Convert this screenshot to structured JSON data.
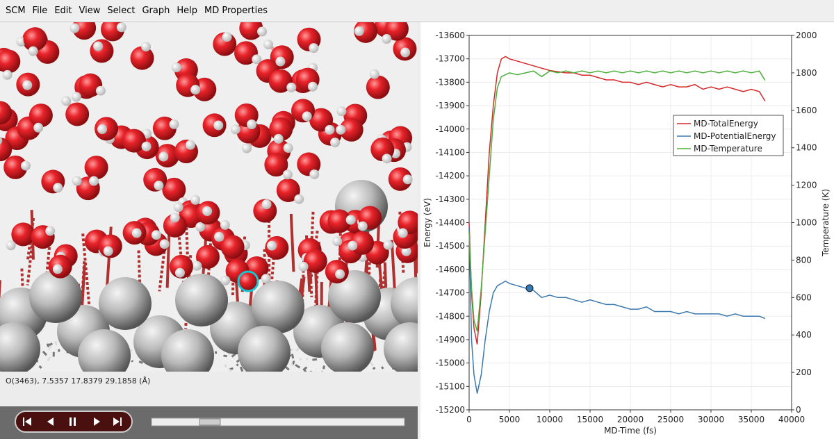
{
  "menu": [
    "SCM",
    "File",
    "Edit",
    "View",
    "Select",
    "Graph",
    "Help",
    "MD Properties"
  ],
  "status": "O(3463), 7.5357 17.8379 29.1858 (Å)",
  "chart_data": {
    "type": "line",
    "xlabel": "MD-Time (fs)",
    "ylabel": "Energy (eV)",
    "y2label": "Temperature (K)",
    "x": [
      0,
      300,
      600,
      1000,
      1500,
      2000,
      2500,
      3000,
      3500,
      4000,
      4500,
      5000,
      6000,
      7000,
      8000,
      9000,
      10000,
      11000,
      12000,
      13000,
      14000,
      15000,
      16000,
      17000,
      18000,
      19000,
      20000,
      21000,
      22000,
      23000,
      24000,
      25000,
      26000,
      27000,
      28000,
      29000,
      30000,
      31000,
      32000,
      33000,
      34000,
      35000,
      36000,
      36700
    ],
    "series": [
      {
        "name": "MD-TotalEnergy",
        "color": "#d62728",
        "values": [
          -14400,
          -14700,
          -14850,
          -14920,
          -14700,
          -14400,
          -14100,
          -13900,
          -13760,
          -13700,
          -13690,
          -13700,
          -13710,
          -13720,
          -13730,
          -13740,
          -13750,
          -13755,
          -13760,
          -13760,
          -13770,
          -13770,
          -13780,
          -13790,
          -13790,
          -13800,
          -13800,
          -13810,
          -13800,
          -13810,
          -13820,
          -13810,
          -13820,
          -13820,
          -13810,
          -13830,
          -13820,
          -13830,
          -13820,
          -13830,
          -13840,
          -13830,
          -13840,
          -13880
        ]
      },
      {
        "name": "MD-PotentialEnergy",
        "color": "#3a78b0",
        "values": [
          -14420,
          -14900,
          -15050,
          -15130,
          -15050,
          -14900,
          -14780,
          -14700,
          -14670,
          -14660,
          -14650,
          -14660,
          -14670,
          -14680,
          -14690,
          -14720,
          -14710,
          -14720,
          -14720,
          -14730,
          -14740,
          -14730,
          -14740,
          -14750,
          -14750,
          -14760,
          -14770,
          -14770,
          -14760,
          -14780,
          -14780,
          -14780,
          -14790,
          -14780,
          -14790,
          -14790,
          -14790,
          -14790,
          -14800,
          -14790,
          -14800,
          -14800,
          -14800,
          -14810
        ]
      },
      {
        "name": "MD-Temperature",
        "color": "#4caf3c",
        "axis": "y2",
        "values": [
          950,
          650,
          480,
          420,
          650,
          950,
          1250,
          1550,
          1720,
          1780,
          1790,
          1800,
          1790,
          1800,
          1810,
          1780,
          1810,
          1800,
          1810,
          1800,
          1810,
          1800,
          1810,
          1800,
          1810,
          1800,
          1810,
          1800,
          1810,
          1800,
          1810,
          1800,
          1810,
          1800,
          1810,
          1800,
          1810,
          1800,
          1810,
          1800,
          1810,
          1800,
          1810,
          1760
        ]
      }
    ],
    "cursor": {
      "x": 7500,
      "y": -14680
    },
    "xlim": [
      0,
      40000
    ],
    "xticks": [
      0,
      5000,
      10000,
      15000,
      20000,
      25000,
      30000,
      35000,
      40000
    ],
    "ylim": [
      -15200,
      -13600
    ],
    "yticks": [
      -15200,
      -15100,
      -15000,
      -14900,
      -14800,
      -14700,
      -14600,
      -14500,
      -14400,
      -14300,
      -14200,
      -14100,
      -14000,
      -13900,
      -13800,
      -13700,
      -13600
    ],
    "y2lim": [
      0,
      2000
    ],
    "y2ticks": [
      0,
      200,
      400,
      600,
      800,
      1000,
      1200,
      1400,
      1600,
      1800,
      2000
    ],
    "grid": true,
    "legend": "right"
  }
}
